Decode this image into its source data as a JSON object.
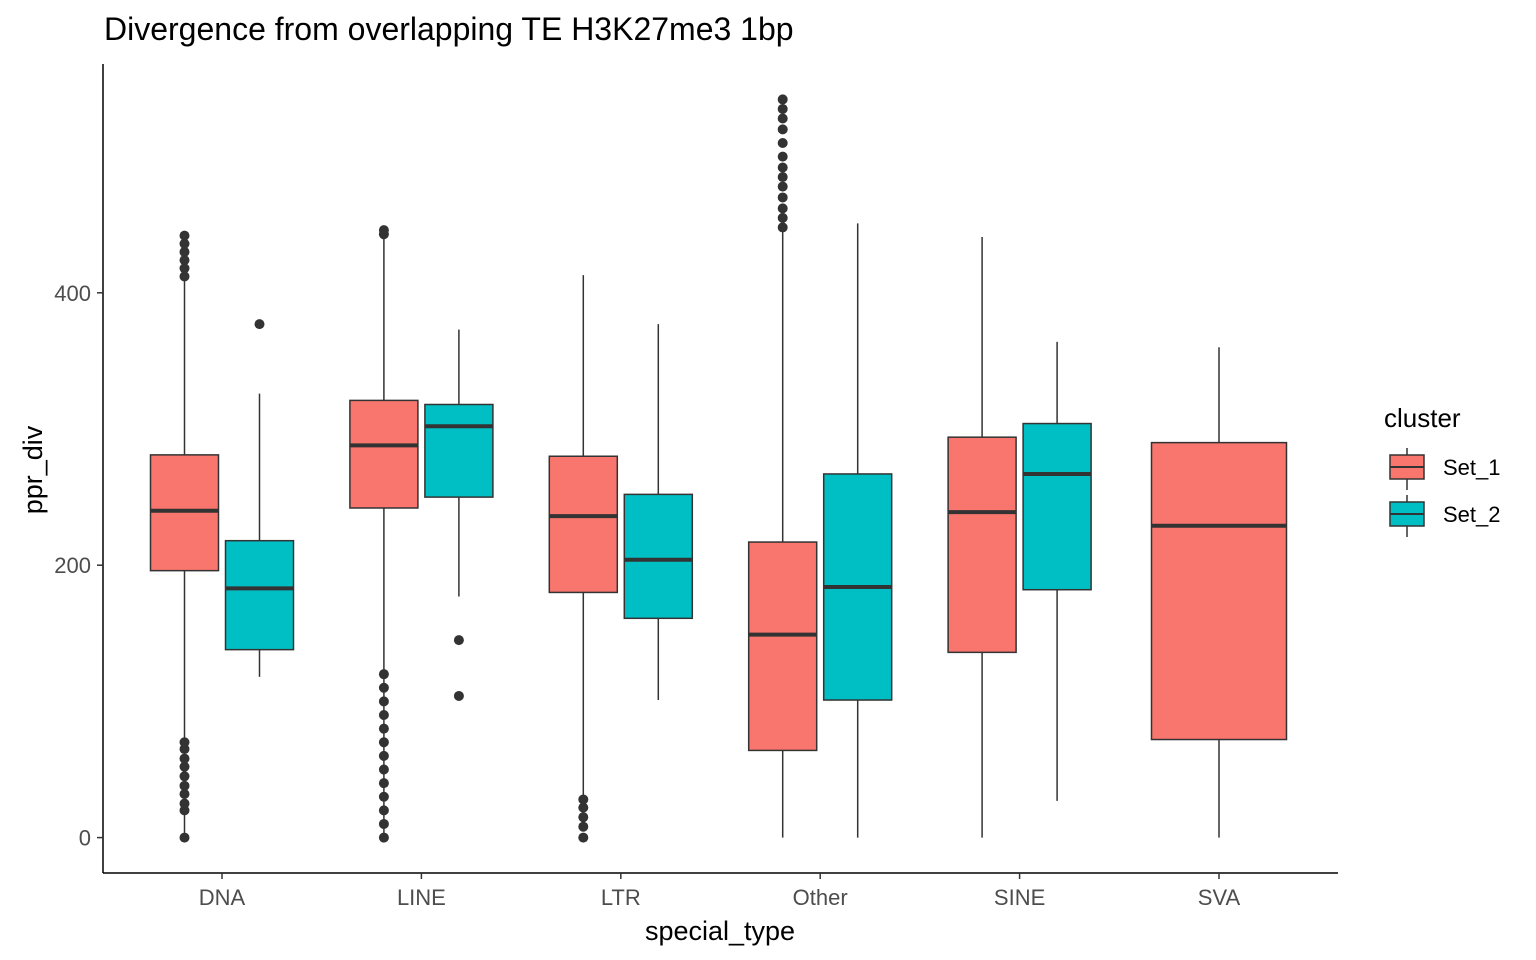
{
  "chart_data": {
    "type": "boxplot",
    "title": "Divergence from overlapping TE H3K27me3 1bp",
    "xlabel": "special_type",
    "ylabel": "ppr_div",
    "ylim": [
      -26,
      568
    ],
    "yticks": [
      0,
      200,
      400
    ],
    "categories": [
      "DNA",
      "LINE",
      "LTR",
      "Other",
      "SINE",
      "SVA"
    ],
    "legend": {
      "title": "cluster",
      "position": "right"
    },
    "series": [
      {
        "name": "Set_1",
        "color": "#F8766D",
        "boxes": [
          {
            "category": "DNA",
            "min": 0,
            "q1": 196,
            "median": 240,
            "q3": 281,
            "max": 422,
            "outliers": [
              0,
              20,
              25,
              32,
              38,
              45,
              52,
              58,
              65,
              70,
              412,
              418,
              424,
              430,
              436,
              442
            ]
          },
          {
            "category": "LINE",
            "min": 0,
            "q1": 242,
            "median": 288,
            "q3": 321,
            "max": 440,
            "outliers": [
              0,
              10,
              20,
              30,
              40,
              50,
              60,
              70,
              80,
              90,
              100,
              110,
              120,
              443,
              446
            ]
          },
          {
            "category": "LTR",
            "min": 30,
            "q1": 180,
            "median": 236,
            "q3": 280,
            "max": 413,
            "outliers": [
              0,
              8,
              15,
              22,
              28
            ]
          },
          {
            "category": "Other",
            "min": 0,
            "q1": 64,
            "median": 149,
            "q3": 217,
            "max": 445,
            "outliers": [
              448,
              455,
              462,
              470,
              478,
              485,
              492,
              500,
              510,
              520,
              528,
              535,
              542
            ]
          },
          {
            "category": "SINE",
            "min": 0,
            "q1": 136,
            "median": 239,
            "q3": 294,
            "max": 441,
            "outliers": []
          },
          {
            "category": "SVA",
            "min": 0,
            "q1": 72,
            "median": 229,
            "q3": 290,
            "max": 360,
            "outliers": []
          }
        ]
      },
      {
        "name": "Set_2",
        "color": "#00BFC4",
        "boxes": [
          {
            "category": "DNA",
            "min": 118,
            "q1": 138,
            "median": 183,
            "q3": 218,
            "max": 326,
            "outliers": [
              377
            ]
          },
          {
            "category": "LINE",
            "min": 177,
            "q1": 250,
            "median": 302,
            "q3": 318,
            "max": 373,
            "outliers": [
              104,
              145
            ]
          },
          {
            "category": "LTR",
            "min": 101,
            "q1": 161,
            "median": 204,
            "q3": 252,
            "max": 377,
            "outliers": []
          },
          {
            "category": "Other",
            "min": 0,
            "q1": 101,
            "median": 184,
            "q3": 267,
            "max": 451,
            "outliers": []
          },
          {
            "category": "SINE",
            "min": 27,
            "q1": 182,
            "median": 267,
            "q3": 304,
            "max": 364,
            "outliers": []
          }
        ]
      }
    ]
  }
}
